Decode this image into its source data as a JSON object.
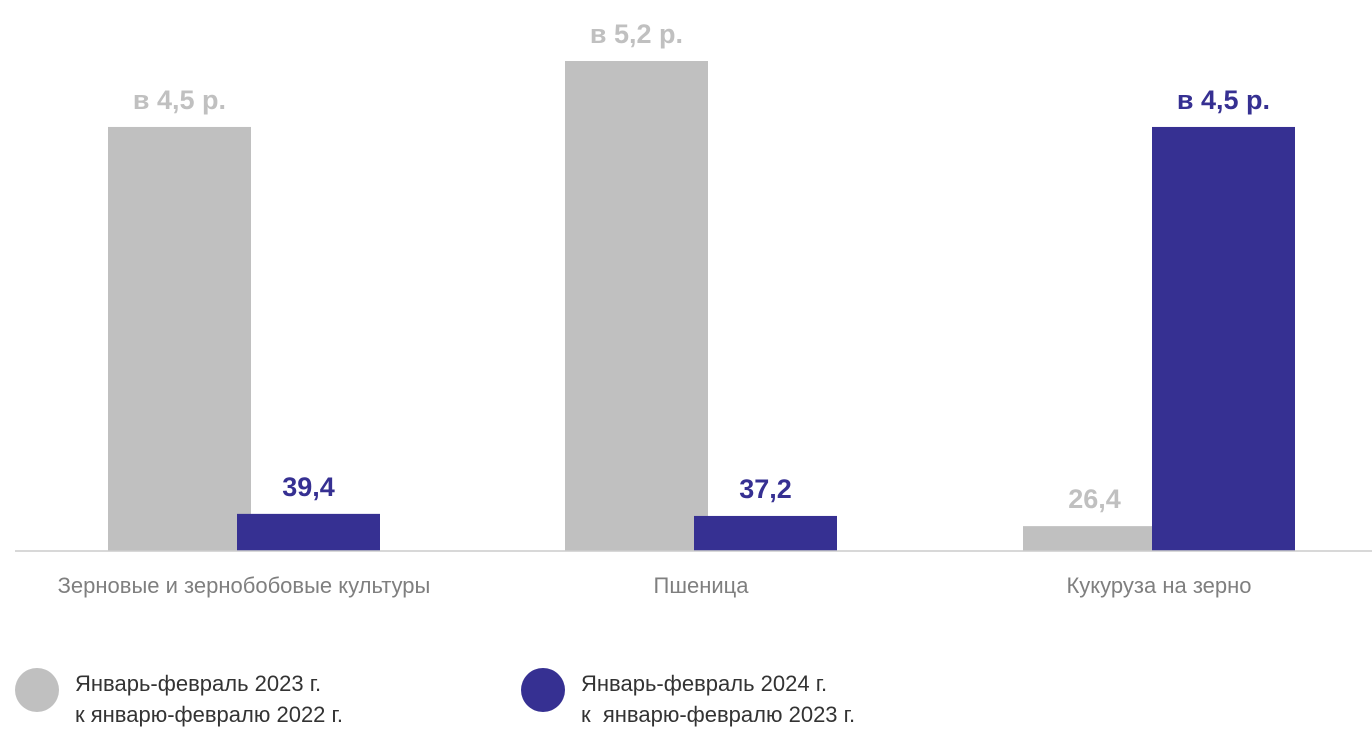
{
  "chart_data": {
    "type": "bar",
    "categories": [
      "Зерновые и зернобобовые культуры",
      "Пшеница",
      "Кукуруза на зерно"
    ],
    "series": [
      {
        "name": "Январь-февраль 2023 г.\nк январю-февралю 2022 г.",
        "color": "#c0c0c0",
        "values": [
          450,
          520,
          26.4
        ],
        "value_labels": [
          "в 4,5 р.",
          "в 5,2 р.",
          "26,4"
        ]
      },
      {
        "name": "Январь-февраль 2024 г.\nк  январю-февралю 2023 г.",
        "color": "#363092",
        "values": [
          39.4,
          37.2,
          450
        ],
        "value_labels": [
          "39,4",
          "37,2",
          "в 4,5 р."
        ]
      }
    ]
  }
}
